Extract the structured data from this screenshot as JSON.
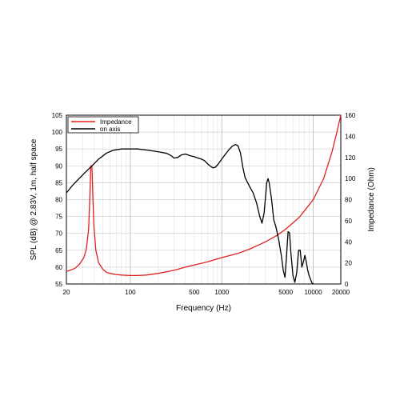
{
  "chart_data": {
    "type": "line",
    "title": "",
    "xlabel": "Frequency (Hz)",
    "ylabel_left": "SPL (dB) @ 2.83V, 1m, half space",
    "ylabel_right": "Impedance (Ohm)",
    "x_scale": "log",
    "xlim": [
      20,
      20000
    ],
    "ylim_left": [
      55,
      105
    ],
    "ylim_right": [
      0,
      160
    ],
    "x_tick_labels": [
      {
        "value": 20,
        "label": "20"
      },
      {
        "value": 100,
        "label": "100"
      },
      {
        "value": 500,
        "label": "500"
      },
      {
        "value": 1000,
        "label": "1000"
      },
      {
        "value": 5000,
        "label": "5000"
      },
      {
        "value": 10000,
        "label": "10000"
      },
      {
        "value": 20000,
        "label": "20000"
      }
    ],
    "y_left_ticks": [
      55,
      60,
      65,
      70,
      75,
      80,
      85,
      90,
      95,
      100,
      105
    ],
    "y_right_ticks": [
      0,
      20,
      40,
      60,
      80,
      100,
      120,
      140,
      160
    ],
    "grid": true,
    "legend_position": "top-left",
    "series": [
      {
        "name": "Impedance",
        "axis": "right",
        "color": "#e02020",
        "x": [
          20,
          22,
          25,
          28,
          31,
          33,
          35,
          36,
          37,
          38,
          39,
          40,
          42,
          45,
          50,
          55,
          60,
          70,
          80,
          100,
          120,
          150,
          200,
          300,
          400,
          500,
          700,
          1000,
          1500,
          2000,
          3000,
          4000,
          5000,
          7000,
          10000,
          13000,
          16000,
          18000,
          20000
        ],
        "values": [
          12,
          13,
          15,
          19,
          25,
          33,
          52,
          80,
          112,
          112,
          80,
          55,
          32,
          20,
          14,
          11,
          10,
          9,
          8.5,
          8,
          8,
          8.5,
          10,
          13,
          16,
          18,
          21,
          25,
          29,
          33,
          40,
          46,
          52,
          63,
          80,
          100,
          125,
          143,
          160
        ]
      },
      {
        "name": "on axis",
        "axis": "left",
        "color": "#000000",
        "x": [
          20,
          23,
          27,
          32,
          38,
          45,
          55,
          65,
          80,
          100,
          120,
          150,
          200,
          250,
          280,
          300,
          330,
          360,
          400,
          450,
          500,
          550,
          600,
          650,
          700,
          750,
          800,
          850,
          900,
          1000,
          1100,
          1200,
          1300,
          1400,
          1500,
          1600,
          1700,
          1800,
          2000,
          2200,
          2400,
          2600,
          2750,
          2900,
          3000,
          3100,
          3200,
          3300,
          3500,
          3700,
          3900,
          4200,
          4500,
          4700,
          4900,
          5100,
          5300,
          5500,
          5700,
          6000,
          6300,
          6600,
          6900,
          7200,
          7500,
          7800,
          8100,
          8400,
          8700,
          9000,
          9300,
          9600,
          10000
        ],
        "values": [
          82,
          84,
          86,
          88,
          90,
          92,
          93.8,
          94.6,
          95,
          95,
          95,
          94.7,
          94.2,
          93.7,
          93,
          92.3,
          92.5,
          93.2,
          93.5,
          93,
          92.7,
          92.3,
          92,
          91.5,
          90.6,
          89.9,
          89.4,
          89.6,
          90.3,
          92,
          93.5,
          94.8,
          95.8,
          96.3,
          96,
          93.8,
          89.5,
          86.5,
          84,
          82,
          79,
          75,
          73,
          76,
          80.5,
          85,
          86.2,
          85,
          80,
          74,
          72,
          68,
          63,
          59,
          57,
          63,
          70.5,
          70.2,
          64,
          57.5,
          55.5,
          58.5,
          65,
          65,
          60,
          61.5,
          63.5,
          61.5,
          59,
          57.5,
          56.5,
          55.5,
          55
        ]
      }
    ]
  }
}
